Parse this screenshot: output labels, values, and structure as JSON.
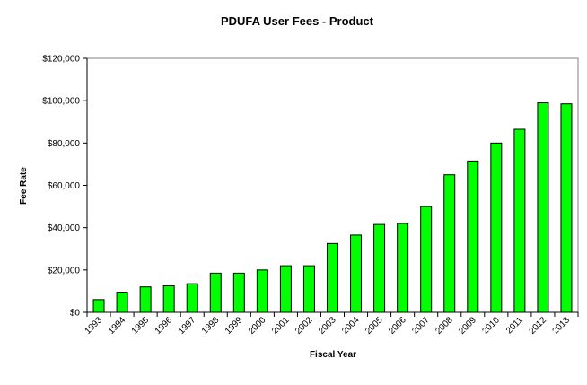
{
  "chart_data": {
    "type": "bar",
    "title": "PDUFA  User Fees - Product",
    "xlabel": "Fiscal Year",
    "ylabel": "Fee Rate",
    "categories": [
      "1993",
      "1994",
      "1995",
      "1996",
      "1997",
      "1998",
      "1999",
      "2000",
      "2001",
      "2002",
      "2003",
      "2004",
      "2005",
      "2006",
      "2007",
      "2008",
      "2009",
      "2010",
      "2011",
      "2012",
      "2013"
    ],
    "values": [
      6000,
      9500,
      12000,
      12500,
      13500,
      18500,
      18500,
      20000,
      22000,
      22000,
      32500,
      36500,
      41500,
      42000,
      50000,
      65000,
      71500,
      80000,
      86500,
      99000,
      98500
    ],
    "yticks": [
      "$0",
      "$20,000",
      "$40,000",
      "$60,000",
      "$80,000",
      "$100,000",
      "$120,000"
    ],
    "ylim": [
      0,
      120000
    ],
    "grid": false,
    "legend": "none",
    "bar_color": "#00ff00",
    "bar_border_color": "#000000"
  }
}
